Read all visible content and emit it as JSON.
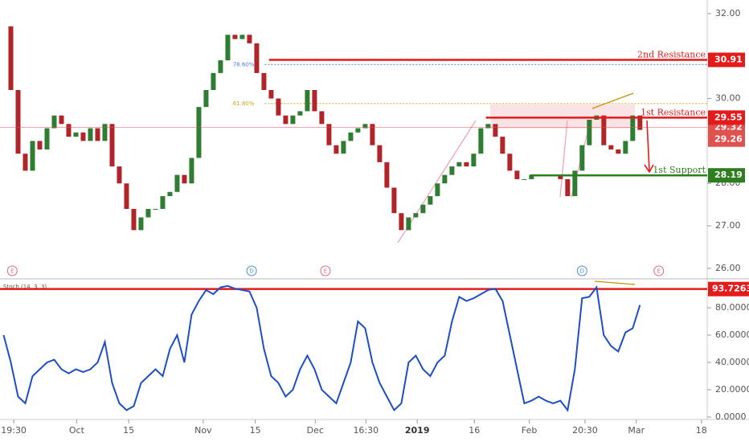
{
  "chart_data": {
    "type": "candlestick",
    "xlim": [
      -0.5,
      97.3
    ],
    "xticks": [
      {
        "value": 1.4,
        "label": "19:30"
      },
      {
        "value": 10.1,
        "label": "Oct"
      },
      {
        "value": 17.3,
        "label": "15"
      },
      {
        "value": 27.6,
        "label": "Nov"
      },
      {
        "value": 34.8,
        "label": "15"
      },
      {
        "value": 43.1,
        "label": "Dec"
      },
      {
        "value": 50.1,
        "label": "16:30"
      },
      {
        "value": 57.2,
        "label": "2019"
      },
      {
        "value": 65.1,
        "label": "16"
      },
      {
        "value": 72.7,
        "label": "Feb"
      },
      {
        "value": 80.4,
        "label": "20:30"
      },
      {
        "value": 87.5,
        "label": "Mar"
      },
      {
        "value": 96.5,
        "label": "18"
      }
    ],
    "ylim": [
      25.79,
      32.32
    ],
    "yticks": [
      {
        "value": 26,
        "label": "26.00"
      },
      {
        "value": 27,
        "label": "27.00"
      },
      {
        "value": 28,
        "label": "28.00"
      },
      {
        "value": 30,
        "label": "30.00"
      },
      {
        "value": 32,
        "label": "32.00"
      }
    ],
    "up_color": "#2e7d32",
    "down_color": "#b0242a",
    "close": [
      31.7,
      30.2,
      28.7,
      28.3,
      29.0,
      28.8,
      29.3,
      29.6,
      29.4,
      29.1,
      29.2,
      29.0,
      29.3,
      29.0,
      29.4,
      28.4,
      28.0,
      27.4,
      26.9,
      27.2,
      27.4,
      27.4,
      27.7,
      27.8,
      28.2,
      28.0,
      28.6,
      29.8,
      30.2,
      30.6,
      30.9,
      31.5,
      31.4,
      31.5,
      31.3,
      30.6,
      30.2,
      30.0,
      29.6,
      29.4,
      29.6,
      29.7,
      30.2,
      29.7,
      29.4,
      28.9,
      28.7,
      29.0,
      29.2,
      29.3,
      29.4,
      28.9,
      28.5,
      27.9,
      27.3,
      26.9,
      27.2,
      27.3,
      27.5,
      27.7,
      28.0,
      28.2,
      28.4,
      28.5,
      28.4,
      28.7,
      29.3,
      29.4,
      29.1,
      28.7,
      28.3,
      28.1,
      28.1,
      28.2,
      28.2,
      28.2,
      28.2,
      28.1,
      27.7,
      28.3,
      28.9,
      29.5,
      29.6,
      28.9,
      28.8,
      28.7,
      29.0,
      29.6,
      29.26
    ],
    "levels": [
      {
        "name": "2nd Resistance",
        "value": 30.91,
        "from": 36.7,
        "color": "#e31b1b"
      },
      {
        "name": "1st Resistance",
        "value": 29.55,
        "from": 66.7,
        "color": "#e31b1b"
      },
      {
        "name": "1st Support",
        "value": 28.19,
        "from": 72.8,
        "color": "#2e7d1f"
      }
    ],
    "fib_levels": [
      {
        "label": "78.60%",
        "value": 30.8,
        "from": 35,
        "color": "#4a7bd4"
      },
      {
        "label": "61.80%",
        "value": 29.88,
        "from": 35,
        "color": "#d4a017"
      }
    ],
    "price_labels": [
      {
        "value": 29.32,
        "color": "#e0524f"
      },
      {
        "value": 29.26,
        "color": "#e0524f"
      }
    ],
    "events": [
      {
        "label": "E",
        "x": 1.2,
        "color": "#e06b7d"
      },
      {
        "label": "D",
        "x": 34.3,
        "color": "#4a90d9"
      },
      {
        "label": "E",
        "x": 44.5,
        "color": "#e06b7d"
      },
      {
        "label": "D",
        "x": 80,
        "color": "#4a90d9"
      },
      {
        "label": "E",
        "x": 90.6,
        "color": "#e06b7d"
      }
    ],
    "stoch": {
      "title": "Stoch (14, 3, 3)",
      "color": "#1e4fc2",
      "ylim": [
        -1.8,
        100.6
      ],
      "yticks": [
        {
          "value": 0,
          "label": "0.0000"
        },
        {
          "value": 20,
          "label": "20.0000"
        },
        {
          "value": 40,
          "label": "40.0000"
        },
        {
          "value": 60,
          "label": "60.0000"
        },
        {
          "value": 80,
          "label": "80.0000"
        }
      ],
      "level": {
        "value": 93.7263,
        "color": "#e31b1b"
      },
      "values": [
        60,
        40,
        15,
        10,
        30,
        35,
        40,
        42,
        35,
        32,
        35,
        33,
        35,
        40,
        55,
        25,
        10,
        5,
        8,
        25,
        30,
        35,
        30,
        50,
        60,
        40,
        75,
        85,
        93,
        90,
        95,
        96,
        94,
        93,
        92,
        80,
        50,
        30,
        25,
        15,
        20,
        35,
        45,
        35,
        20,
        15,
        10,
        25,
        40,
        70,
        65,
        40,
        25,
        15,
        5,
        10,
        40,
        45,
        35,
        30,
        40,
        45,
        70,
        88,
        85,
        87,
        90,
        93,
        94,
        85,
        60,
        35,
        10,
        12,
        15,
        12,
        10,
        12,
        5,
        35,
        87,
        88,
        95,
        60,
        52,
        48,
        62,
        65,
        82
      ]
    }
  }
}
